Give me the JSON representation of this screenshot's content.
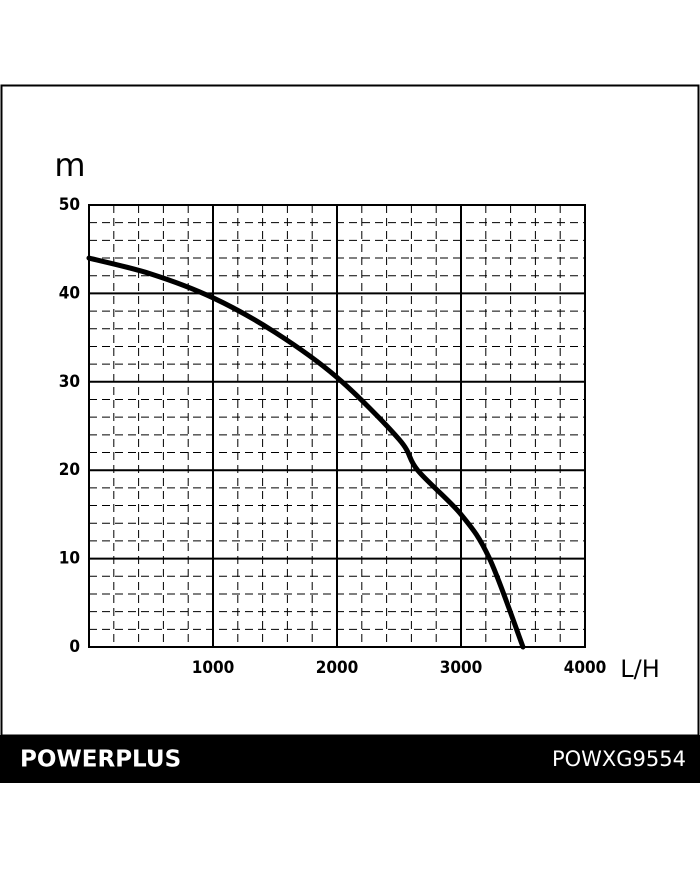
{
  "chart_data": {
    "type": "line",
    "y_label": "m",
    "x_label": "L/H",
    "x": [
      0,
      500,
      1000,
      1500,
      2000,
      2500,
      2650,
      3000,
      3230,
      3500
    ],
    "series": [
      {
        "color": "#000000",
        "values": [
          44,
          42.2,
          39.5,
          35.6,
          30.5,
          23.5,
          20,
          15,
          10,
          0
        ]
      }
    ],
    "xlim": [
      0,
      4000
    ],
    "xticks": [
      1000,
      2000,
      3000,
      4000
    ],
    "ylim": [
      0,
      50
    ],
    "yticks": [
      0,
      10,
      20,
      30,
      40,
      50
    ],
    "grid": true
  },
  "footer": {
    "brand": "POWERPLUS",
    "model": "POWXG9554"
  }
}
